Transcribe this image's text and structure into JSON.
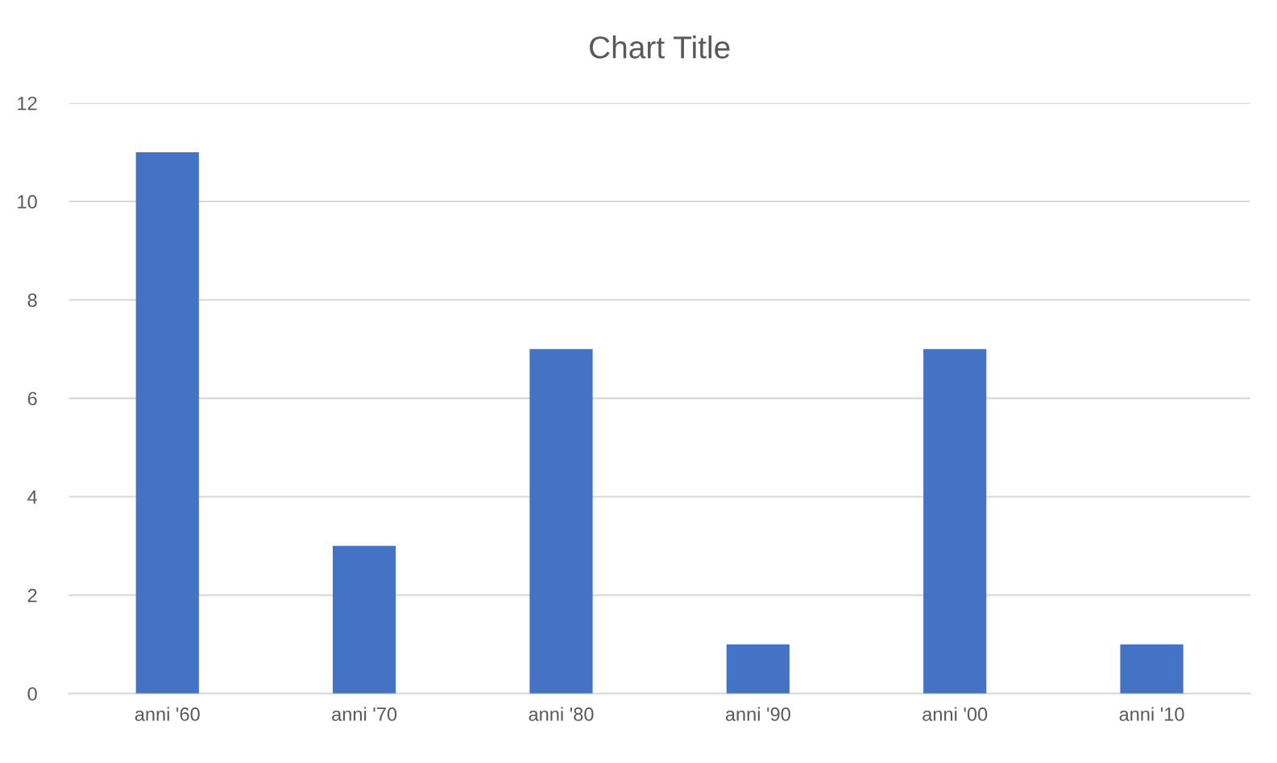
{
  "chart_data": {
    "type": "bar",
    "title": "Chart Title",
    "categories": [
      "anni '60",
      "anni '70",
      "anni '80",
      "anni '90",
      "anni '00",
      "anni '10"
    ],
    "values": [
      11,
      3,
      7,
      1,
      7,
      1
    ],
    "color": "#4472c4",
    "ylim": [
      0,
      12
    ],
    "yticks": [
      0,
      2,
      4,
      6,
      8,
      10,
      12
    ],
    "grid": "y"
  }
}
